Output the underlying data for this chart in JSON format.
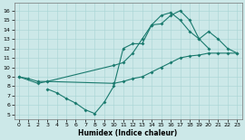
{
  "xlabel": "Humidex (Indice chaleur)",
  "bg_color": "#cce8e8",
  "line_color": "#1a7a6e",
  "xlim": [
    -0.5,
    23.5
  ],
  "ylim": [
    4.5,
    16.8
  ],
  "xticks": [
    0,
    1,
    2,
    3,
    4,
    5,
    6,
    7,
    8,
    9,
    10,
    11,
    12,
    13,
    14,
    15,
    16,
    17,
    18,
    19,
    20,
    21,
    22,
    23
  ],
  "yticks": [
    5,
    6,
    7,
    8,
    9,
    10,
    11,
    12,
    13,
    14,
    15,
    16
  ],
  "line1": {
    "x": [
      0,
      1,
      2,
      3,
      10,
      11,
      12,
      13,
      14,
      15,
      16,
      17,
      18,
      19,
      20,
      21,
      22,
      23
    ],
    "y": [
      9,
      8.8,
      8.5,
      8.5,
      8.3,
      8.5,
      8.8,
      9.0,
      9.5,
      10.0,
      10.5,
      11.0,
      11.2,
      11.3,
      11.5,
      11.5,
      11.5,
      11.5
    ]
  },
  "line2": {
    "x": [
      0,
      2,
      3,
      10,
      11,
      12,
      13,
      14,
      15,
      16,
      17,
      18,
      19,
      20,
      21,
      22,
      23
    ],
    "y": [
      9,
      8.3,
      8.5,
      10.2,
      10.5,
      11.5,
      13.0,
      14.5,
      14.6,
      15.5,
      16.0,
      15.0,
      13.0,
      13.8,
      13.0,
      12.0,
      11.5
    ]
  },
  "line3": {
    "x": [
      3,
      4,
      5,
      6,
      7,
      8,
      9,
      10,
      11,
      12,
      13,
      14,
      15,
      16,
      17,
      18,
      19,
      20
    ],
    "y": [
      7.7,
      7.3,
      6.7,
      6.2,
      5.5,
      5.1,
      6.3,
      8.0,
      12.0,
      12.5,
      12.5,
      14.5,
      15.5,
      15.8,
      15.0,
      13.8,
      13.0,
      12.0
    ]
  }
}
